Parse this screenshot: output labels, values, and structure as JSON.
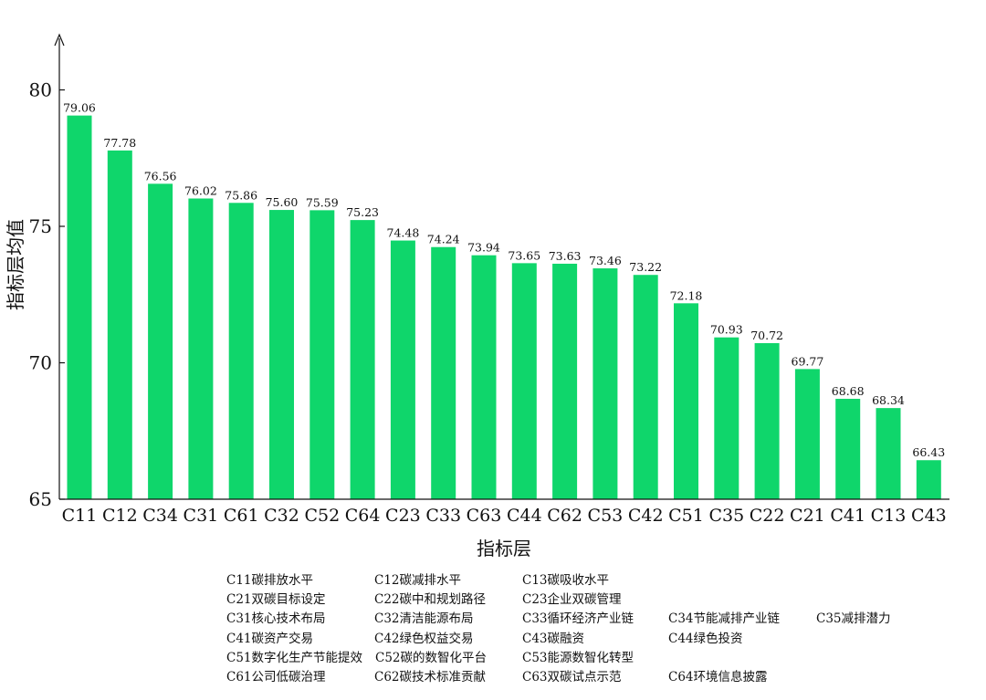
{
  "chart_data": {
    "type": "bar",
    "xlabel": "指标层",
    "ylabel": "指标层均值",
    "ylim": [
      65,
      82
    ],
    "yticks": [
      65,
      70,
      75,
      80
    ],
    "categories": [
      "C11",
      "C12",
      "C34",
      "C31",
      "C61",
      "C32",
      "C52",
      "C64",
      "C23",
      "C33",
      "C63",
      "C44",
      "C62",
      "C53",
      "C42",
      "C51",
      "C35",
      "C22",
      "C21",
      "C41",
      "C13",
      "C43"
    ],
    "values": [
      79.06,
      77.78,
      76.56,
      76.02,
      75.86,
      75.6,
      75.59,
      75.23,
      74.48,
      74.24,
      73.94,
      73.65,
      73.63,
      73.46,
      73.22,
      72.18,
      70.93,
      70.72,
      69.77,
      68.68,
      68.34,
      66.43
    ],
    "value_labels": [
      "79.06",
      "77.78",
      "76.56",
      "76.02",
      "75.86",
      "75.60",
      "75.59",
      "75.23",
      "74.48",
      "74.24",
      "73.94",
      "73.65",
      "73.63",
      "73.46",
      "73.22",
      "72.18",
      "70.93",
      "70.72",
      "69.77",
      "68.68",
      "68.34",
      "66.43"
    ],
    "bar_color": "#0fd66b",
    "grid": false
  },
  "legend": {
    "rows": [
      [
        "C11碳排放水平",
        "C12碳减排水平",
        "C13碳吸收水平"
      ],
      [
        "C21双碳目标设定",
        "C22碳中和规划路径",
        "C23企业双碳管理"
      ],
      [
        "C31核心技术布局",
        "C32清洁能源布局",
        "C33循环经济产业链",
        "C34节能减排产业链",
        "C35减排潜力"
      ],
      [
        "C41碳资产交易",
        "C42绿色权益交易",
        "C43碳融资",
        "C44绿色投资"
      ],
      [
        "C51数字化生产节能提效",
        "C52碳的数智化平台",
        "C53能源数智化转型"
      ],
      [
        "C61公司低碳治理",
        "C62碳技术标准贡献",
        "C63双碳试点示范",
        "C64环境信息披露"
      ]
    ]
  }
}
